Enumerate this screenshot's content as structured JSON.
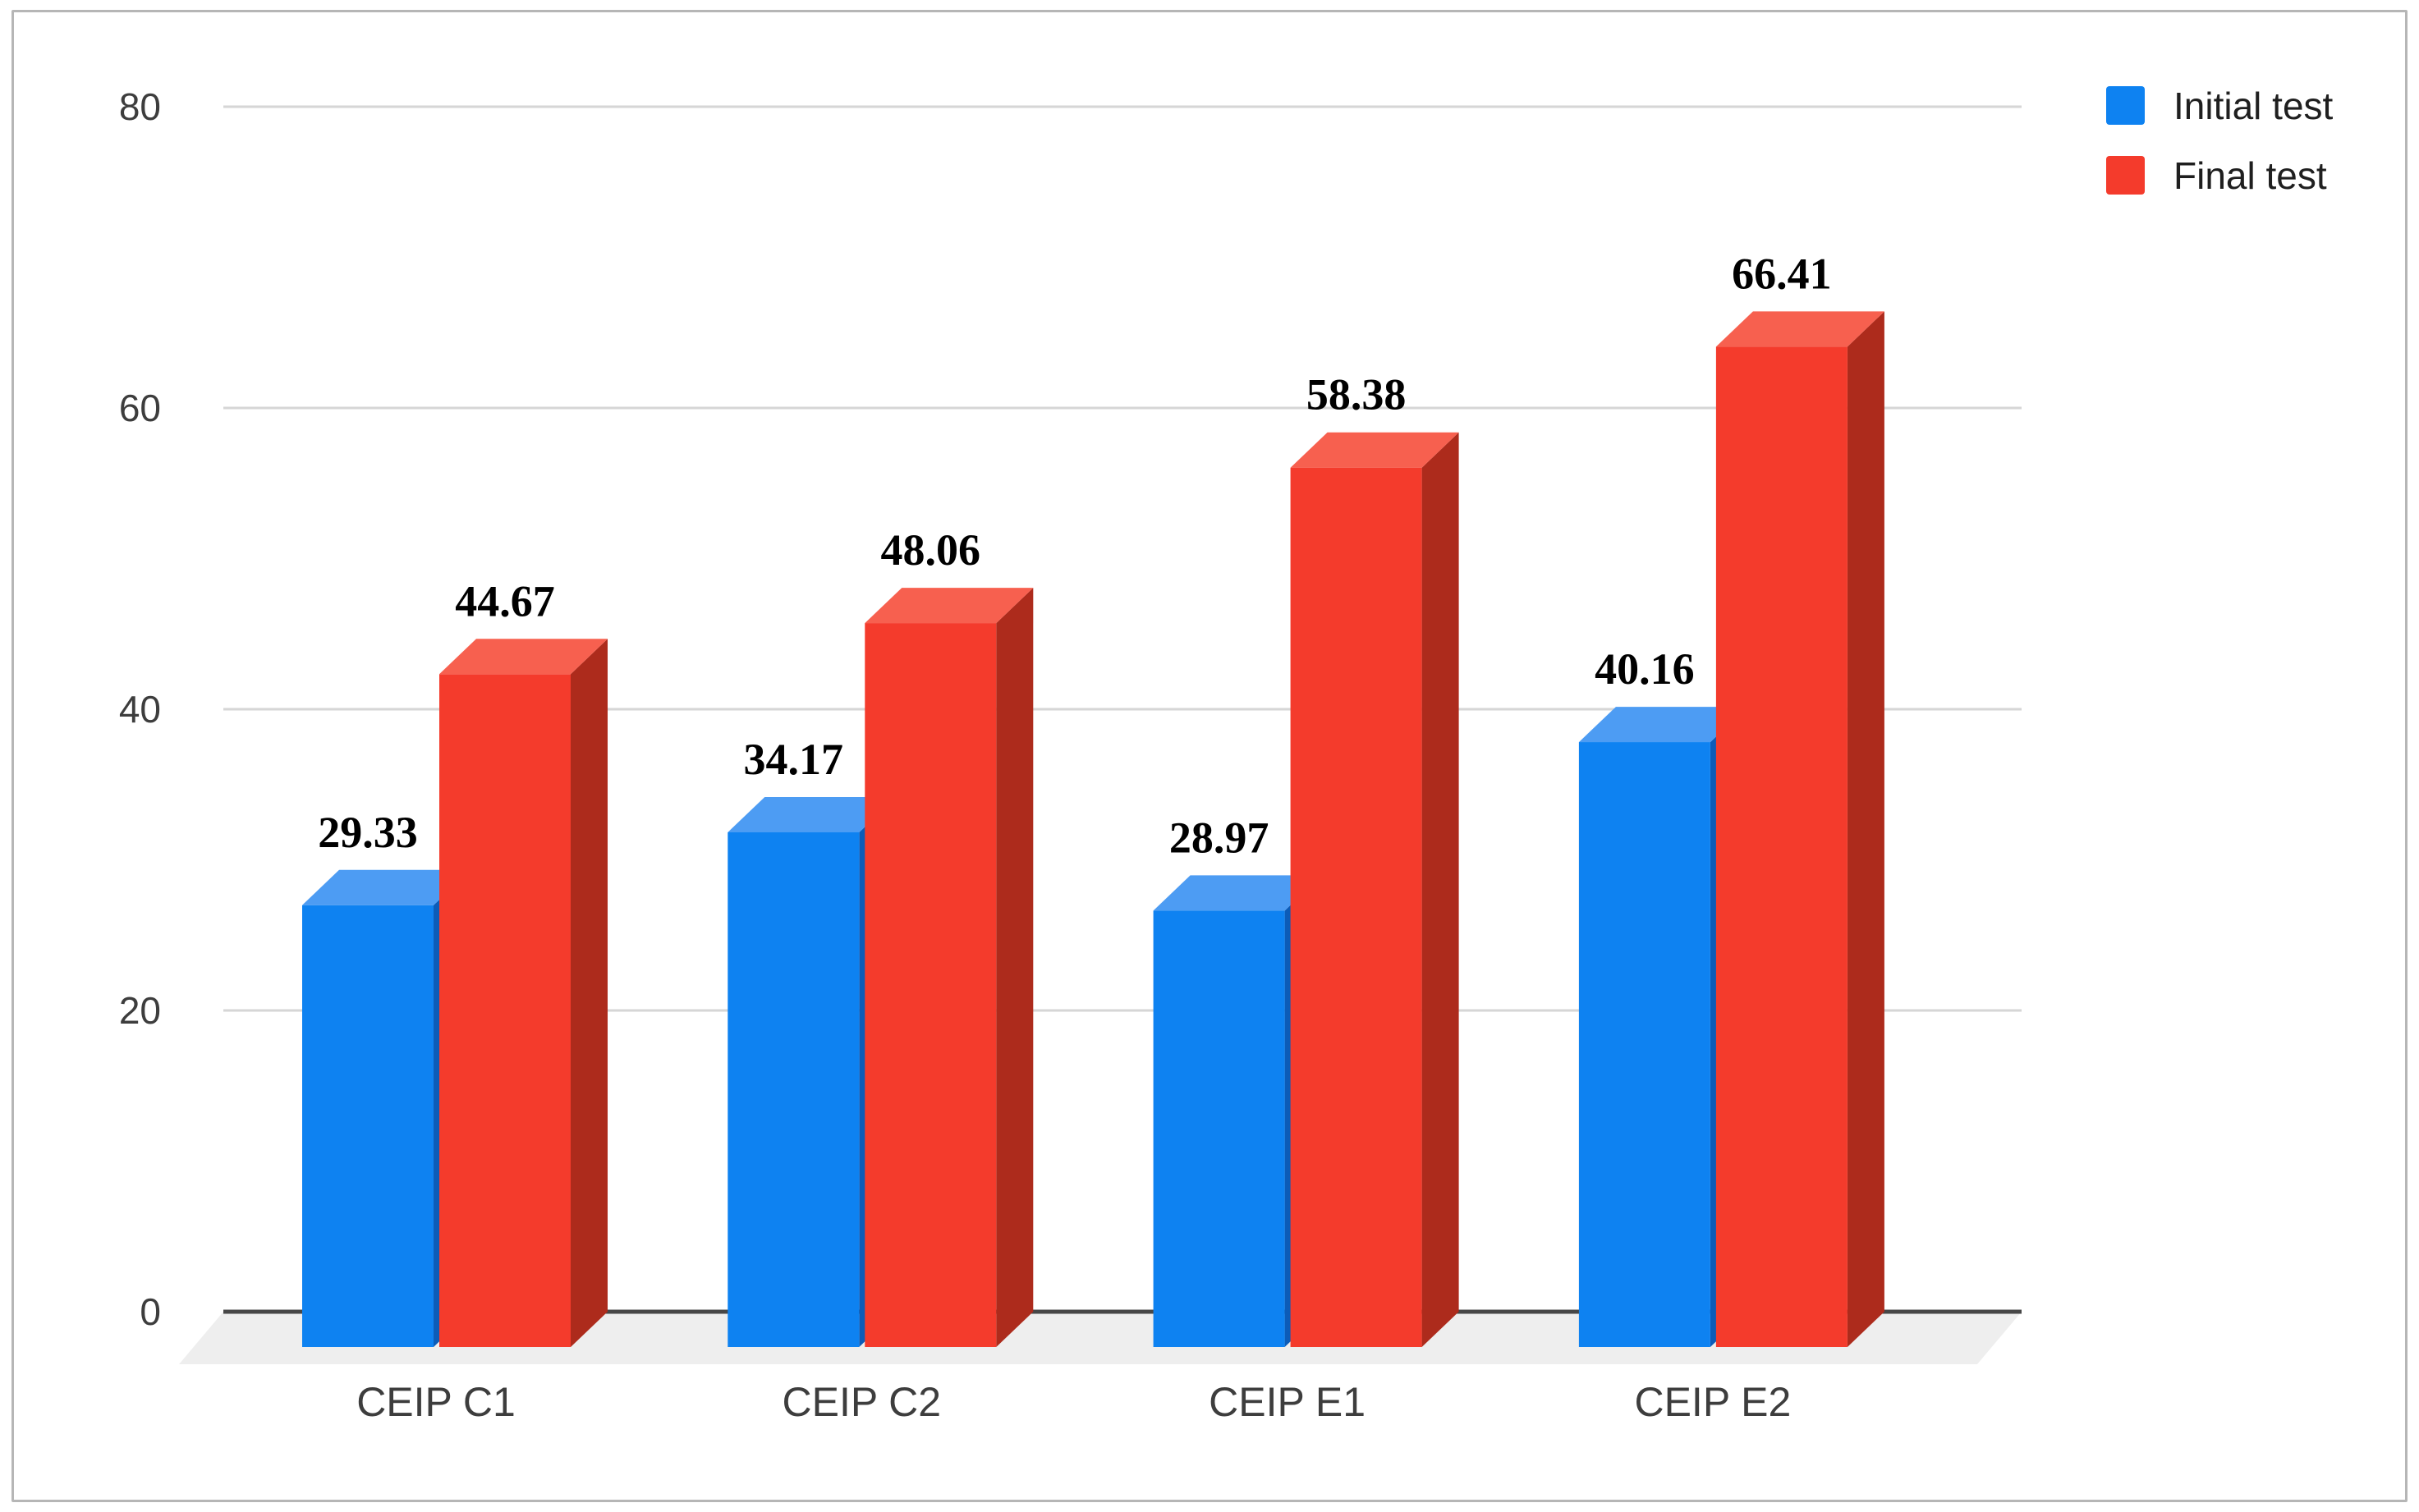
{
  "chart_data": {
    "type": "bar",
    "subtype": "3d-column-grouped",
    "title": "",
    "xlabel": "",
    "ylabel": "",
    "categories": [
      "CEIP C1",
      "CEIP C2",
      "CEIP E1",
      "CEIP E2"
    ],
    "series": [
      {
        "name": "Initial test",
        "color": "#0e82f1",
        "color_top": "#4d9cf3",
        "color_side": "#0c5cb8",
        "values": [
          29.33,
          34.17,
          28.97,
          40.16
        ]
      },
      {
        "name": "Final test",
        "color": "#f43b2c",
        "color_top": "#f7604f",
        "color_side": "#ad2b1c",
        "values": [
          44.67,
          48.06,
          58.38,
          66.41
        ]
      }
    ],
    "data_labels_visible": true,
    "y_axis": {
      "min": 0,
      "max": 80,
      "tick_step": 20,
      "ticks": [
        0,
        20,
        40,
        60,
        80
      ],
      "grid": true
    },
    "legend": {
      "position": "top-right",
      "items": [
        "Initial test",
        "Final test"
      ]
    },
    "colors": {
      "grid": "#d6d6d6",
      "axis": "#474747",
      "floor": "#eeeeee",
      "tick_text": "#3d3d3d",
      "category_text": "#3d3d3d",
      "data_label_text": "#000000",
      "background": "#ffffff",
      "frame_border": "#b6b6b6"
    }
  }
}
